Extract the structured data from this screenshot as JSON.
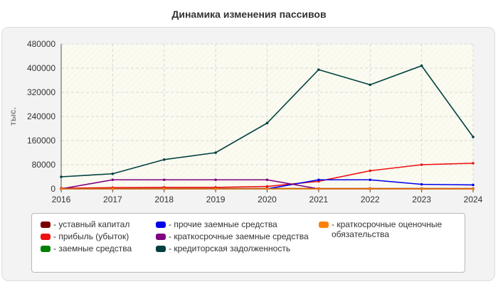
{
  "title": "Динамика изменения пассивов",
  "chart_data": {
    "type": "line",
    "title": "Динамика изменения пассивов",
    "ylabel": "тыс.",
    "xlabel": "",
    "x": [
      "2016",
      "2017",
      "2018",
      "2019",
      "2020",
      "2021",
      "2022",
      "2023",
      "2024"
    ],
    "y_ticks": [
      "0",
      "80000",
      "160000",
      "240000",
      "320000",
      "400000",
      "480000"
    ],
    "ylim": [
      0,
      480000
    ],
    "grid": true,
    "legend_position": "bottom",
    "series": [
      {
        "name": "уставный капитал",
        "color": "#7a0000",
        "values": [
          1000,
          1000,
          1000,
          1000,
          1000,
          1000,
          1000,
          1000,
          1000
        ]
      },
      {
        "name": "прибыль (убыток)",
        "color": "#ee1111",
        "values": [
          2000,
          4000,
          5000,
          5000,
          8000,
          25000,
          60000,
          80000,
          85000
        ]
      },
      {
        "name": "заемные средства",
        "color": "#008000",
        "values": [
          0,
          0,
          0,
          0,
          0,
          0,
          0,
          0,
          0
        ]
      },
      {
        "name": "прочие заемные средства",
        "color": "#0000ee",
        "values": [
          0,
          0,
          0,
          0,
          0,
          30000,
          30000,
          15000,
          13000
        ]
      },
      {
        "name": "краткосрочные заемные средства",
        "color": "#800080",
        "values": [
          0,
          30000,
          30000,
          30000,
          30000,
          0,
          0,
          0,
          0
        ]
      },
      {
        "name": "кредиторская задолженность",
        "color": "#004040",
        "values": [
          40000,
          50000,
          97000,
          120000,
          218000,
          395000,
          345000,
          408000,
          172000
        ]
      },
      {
        "name": "краткосрочные оценочные обязательства",
        "color": "#ff8000",
        "values": [
          0,
          0,
          0,
          0,
          0,
          0,
          0,
          0,
          0
        ]
      }
    ]
  },
  "legend": {
    "col1": [
      {
        "label": "- уставный капитал",
        "color": "#7a0000"
      },
      {
        "label": "- прибыль (убыток)",
        "color": "#ee1111"
      },
      {
        "label": "- заемные средства",
        "color": "#008000"
      }
    ],
    "col2": [
      {
        "label": "- прочие заемные средства",
        "color": "#0000ee"
      },
      {
        "label": "- краткосрочные заемные средства",
        "color": "#800080"
      },
      {
        "label": "- кредиторская задолженность",
        "color": "#004040"
      }
    ],
    "col3": [
      {
        "label": "- краткосрочные оценочные обязательства",
        "color": "#ff8000"
      }
    ]
  }
}
